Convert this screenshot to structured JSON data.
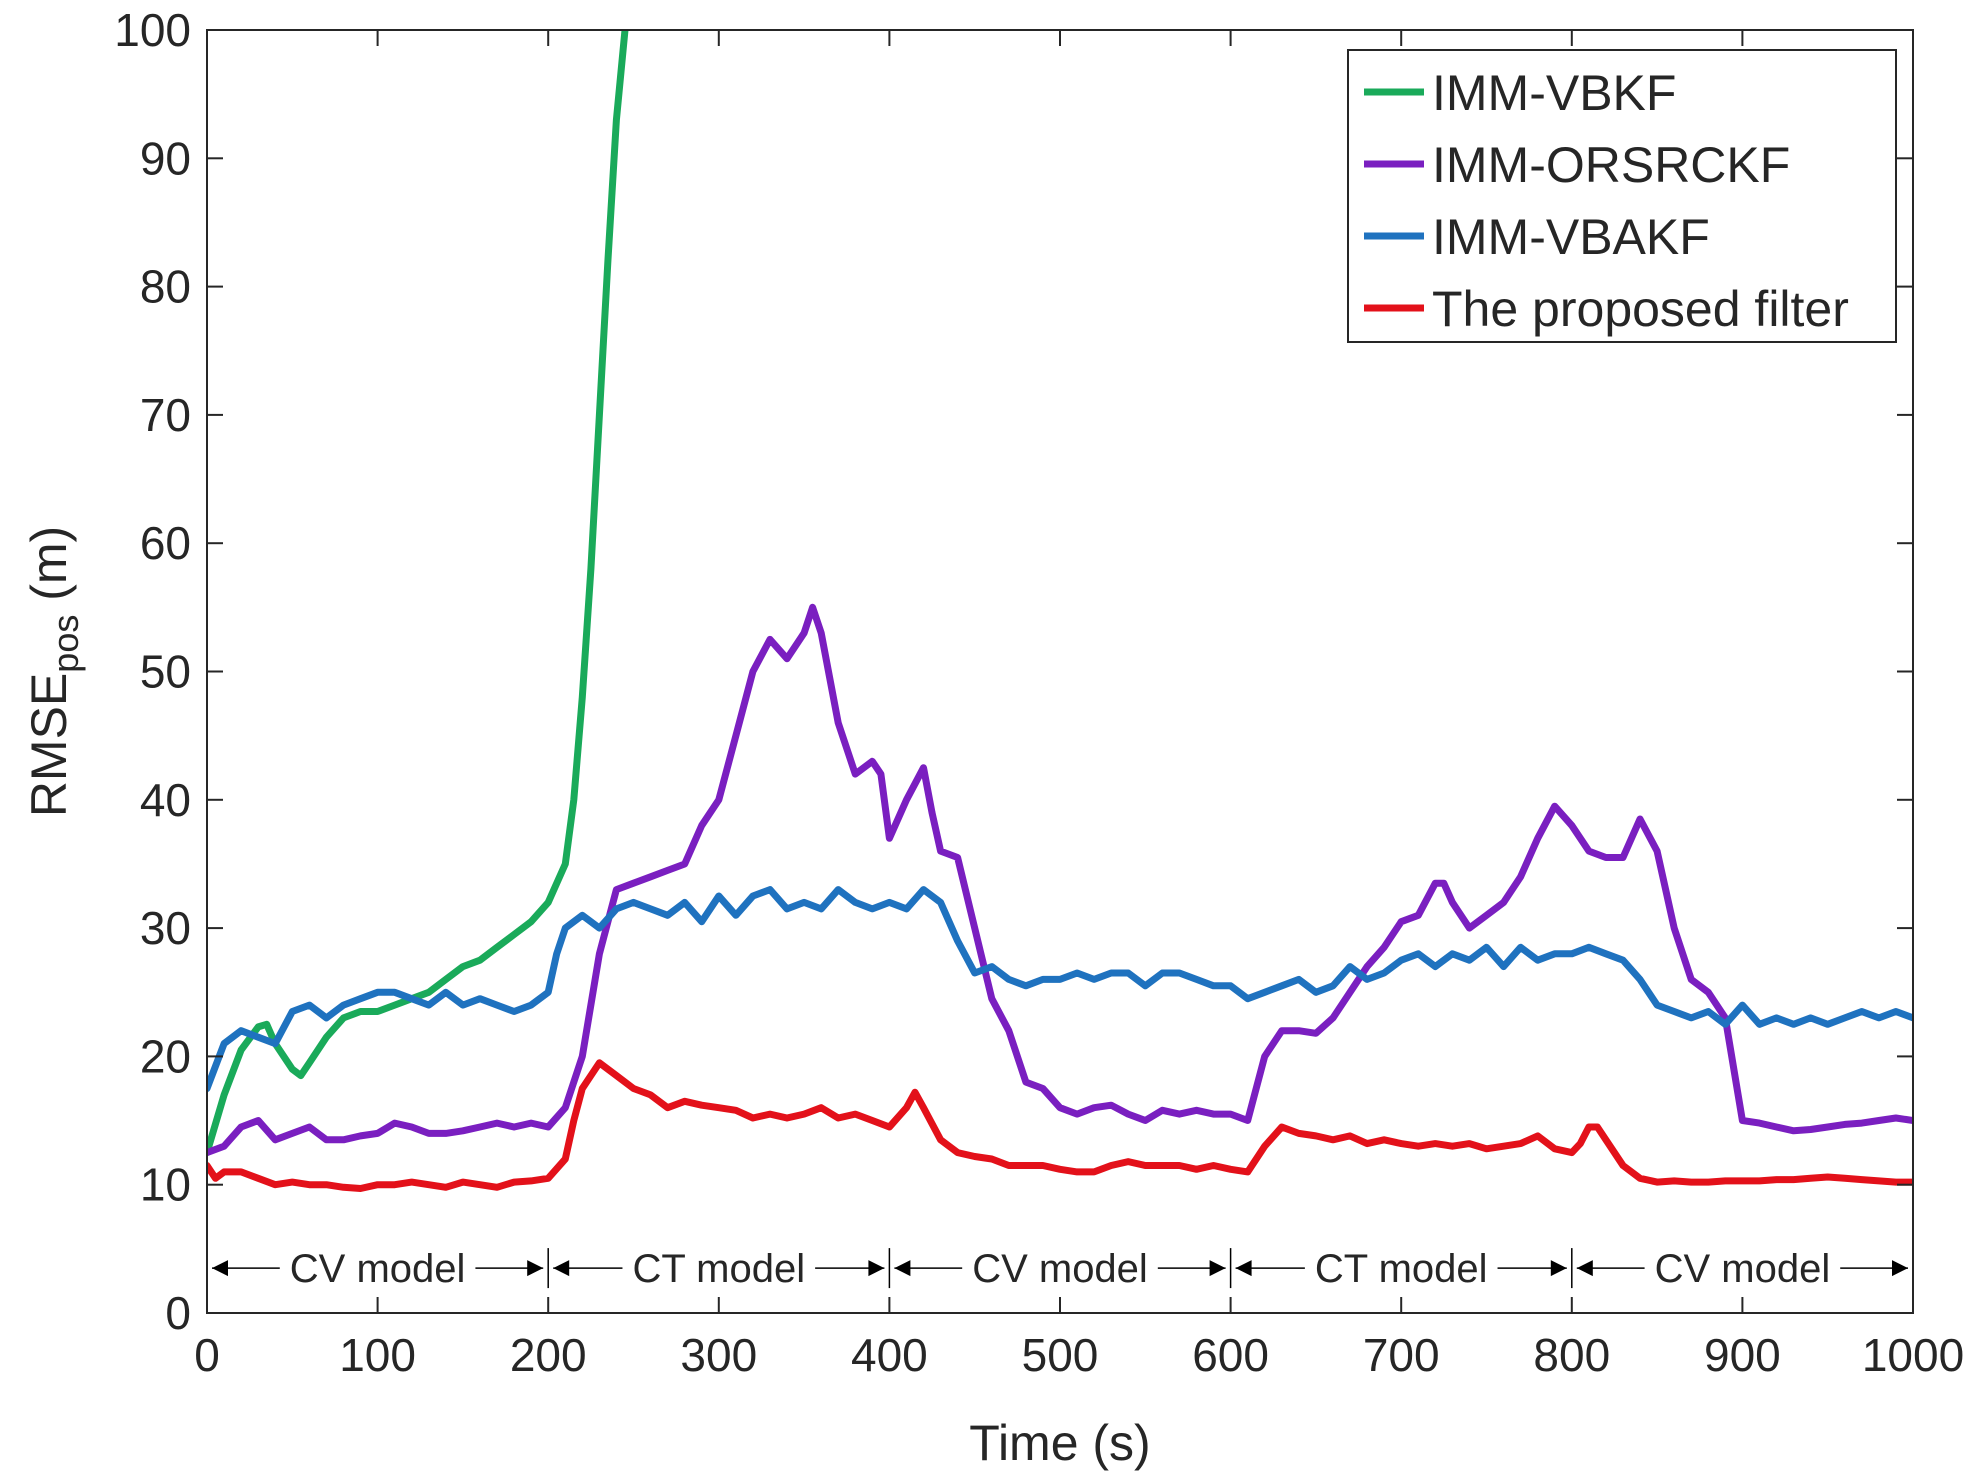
{
  "chart_data": {
    "type": "line",
    "title": "",
    "xlabel": "Time (s)",
    "ylabel_main": "RMSE",
    "ylabel_sub": "pos",
    "ylabel_suffix": " (m)",
    "xlim": [
      0,
      1000
    ],
    "ylim": [
      0,
      100
    ],
    "x_ticks": [
      0,
      100,
      200,
      300,
      400,
      500,
      600,
      700,
      800,
      900,
      1000
    ],
    "y_ticks": [
      0,
      10,
      20,
      30,
      40,
      50,
      60,
      70,
      80,
      90,
      100
    ],
    "grid": false,
    "legend_position": "top-right",
    "series": [
      {
        "name": "IMM-VBKF",
        "color": "#1aaa5a",
        "x": [
          0,
          10,
          20,
          30,
          35,
          40,
          50,
          55,
          60,
          70,
          80,
          90,
          100,
          110,
          120,
          130,
          140,
          150,
          160,
          170,
          180,
          190,
          200,
          210,
          215,
          220,
          225,
          230,
          235,
          240,
          245
        ],
        "y": [
          12.5,
          17,
          20.5,
          22.3,
          22.5,
          21,
          19,
          18.5,
          19.5,
          21.5,
          23,
          23.5,
          23.5,
          24,
          24.5,
          25,
          26,
          27,
          27.5,
          28.5,
          29.5,
          30.5,
          32,
          35,
          40,
          48,
          58,
          70,
          82,
          93,
          100
        ]
      },
      {
        "name": "IMM-ORSRCKF",
        "color": "#7a1fc0",
        "x": [
          0,
          10,
          20,
          30,
          40,
          50,
          60,
          70,
          80,
          90,
          100,
          110,
          120,
          130,
          140,
          150,
          160,
          170,
          180,
          190,
          200,
          210,
          220,
          230,
          240,
          250,
          260,
          270,
          280,
          290,
          300,
          310,
          320,
          330,
          340,
          350,
          355,
          360,
          370,
          380,
          390,
          395,
          400,
          410,
          420,
          425,
          430,
          440,
          450,
          460,
          470,
          480,
          490,
          500,
          510,
          520,
          530,
          540,
          550,
          560,
          570,
          580,
          590,
          600,
          610,
          620,
          630,
          640,
          650,
          660,
          670,
          680,
          690,
          700,
          710,
          720,
          725,
          730,
          740,
          750,
          760,
          770,
          780,
          790,
          800,
          810,
          820,
          830,
          840,
          850,
          860,
          870,
          880,
          890,
          900,
          910,
          920,
          930,
          940,
          950,
          960,
          970,
          980,
          990,
          1000
        ],
        "y": [
          12.5,
          13,
          14.5,
          15,
          13.5,
          14,
          14.5,
          13.5,
          13.5,
          13.8,
          14,
          14.8,
          14.5,
          14,
          14,
          14.2,
          14.5,
          14.8,
          14.5,
          14.8,
          14.5,
          16,
          20,
          28,
          33,
          33.5,
          34,
          34.5,
          35,
          38,
          40,
          45,
          50,
          52.5,
          51,
          53,
          55,
          53,
          46,
          42,
          43,
          42,
          37,
          40,
          42.5,
          39,
          36,
          35.5,
          30,
          24.5,
          22,
          18,
          17.5,
          16,
          15.5,
          16,
          16.2,
          15.5,
          15,
          15.8,
          15.5,
          15.8,
          15.5,
          15.5,
          15,
          20,
          22,
          22,
          21.8,
          23,
          25,
          27,
          28.5,
          30.5,
          31,
          33.5,
          33.5,
          32,
          30,
          31,
          32,
          34,
          37,
          39.5,
          38,
          36,
          35.5,
          35.5,
          38.5,
          36,
          30,
          26,
          25,
          23,
          15,
          14.8,
          14.5,
          14.2,
          14.3,
          14.5,
          14.7,
          14.8,
          15,
          15.2,
          15
        ]
      },
      {
        "name": "IMM-VBAKF",
        "color": "#1f72bf",
        "x": [
          0,
          10,
          20,
          30,
          40,
          50,
          60,
          70,
          80,
          90,
          100,
          110,
          120,
          130,
          140,
          150,
          160,
          170,
          180,
          190,
          200,
          205,
          210,
          220,
          230,
          240,
          250,
          260,
          270,
          280,
          290,
          300,
          310,
          320,
          330,
          340,
          350,
          360,
          370,
          380,
          390,
          400,
          410,
          420,
          430,
          440,
          450,
          460,
          470,
          480,
          490,
          500,
          510,
          520,
          530,
          540,
          550,
          560,
          570,
          580,
          590,
          600,
          610,
          620,
          630,
          640,
          650,
          660,
          670,
          680,
          690,
          700,
          710,
          720,
          730,
          740,
          750,
          760,
          770,
          780,
          790,
          800,
          810,
          820,
          830,
          840,
          850,
          860,
          870,
          880,
          890,
          900,
          910,
          920,
          930,
          940,
          950,
          960,
          970,
          980,
          990,
          1000
        ],
        "y": [
          17.5,
          21,
          22,
          21.5,
          21,
          23.5,
          24,
          23,
          24,
          24.5,
          25,
          25,
          24.5,
          24,
          25,
          24,
          24.5,
          24,
          23.5,
          24,
          25,
          28,
          30,
          31,
          30,
          31.5,
          32,
          31.5,
          31,
          32,
          30.5,
          32.5,
          31,
          32.5,
          33,
          31.5,
          32,
          31.5,
          33,
          32,
          31.5,
          32,
          31.5,
          33,
          32,
          29,
          26.5,
          27,
          26,
          25.5,
          26,
          26,
          26.5,
          26,
          26.5,
          26.5,
          25.5,
          26.5,
          26.5,
          26,
          25.5,
          25.5,
          24.5,
          25,
          25.5,
          26,
          25,
          25.5,
          27,
          26,
          26.5,
          27.5,
          28,
          27,
          28,
          27.5,
          28.5,
          27,
          28.5,
          27.5,
          28,
          28,
          28.5,
          28,
          27.5,
          26,
          24,
          23.5,
          23,
          23.5,
          22.5,
          24,
          22.5,
          23,
          22.5,
          23,
          22.5,
          23,
          23.5,
          23,
          23.5,
          23
        ]
      },
      {
        "name": "The proposed filter",
        "color": "#e3111a",
        "x": [
          0,
          5,
          10,
          20,
          30,
          40,
          50,
          60,
          70,
          80,
          90,
          100,
          110,
          120,
          130,
          140,
          150,
          160,
          170,
          180,
          190,
          200,
          210,
          215,
          220,
          225,
          230,
          235,
          240,
          250,
          260,
          270,
          280,
          290,
          300,
          310,
          320,
          330,
          340,
          350,
          360,
          370,
          380,
          390,
          400,
          410,
          415,
          420,
          430,
          440,
          450,
          460,
          470,
          480,
          490,
          500,
          510,
          520,
          530,
          540,
          550,
          560,
          570,
          580,
          590,
          600,
          610,
          620,
          630,
          640,
          650,
          660,
          670,
          680,
          690,
          700,
          710,
          720,
          730,
          740,
          750,
          760,
          770,
          780,
          790,
          800,
          805,
          810,
          815,
          820,
          830,
          840,
          850,
          860,
          870,
          880,
          890,
          900,
          910,
          920,
          930,
          940,
          950,
          960,
          970,
          980,
          990,
          1000
        ],
        "y": [
          11.5,
          10.5,
          11,
          11,
          10.5,
          10,
          10.2,
          10,
          10,
          9.8,
          9.7,
          10,
          10,
          10.2,
          10,
          9.8,
          10.2,
          10,
          9.8,
          10.2,
          10.3,
          10.5,
          12,
          15,
          17.5,
          18.5,
          19.5,
          19,
          18.5,
          17.5,
          17,
          16,
          16.5,
          16.2,
          16,
          15.8,
          15.2,
          15.5,
          15.2,
          15.5,
          16,
          15.2,
          15.5,
          15,
          14.5,
          16,
          17.2,
          16,
          13.5,
          12.5,
          12.2,
          12,
          11.5,
          11.5,
          11.5,
          11.2,
          11,
          11,
          11.5,
          11.8,
          11.5,
          11.5,
          11.5,
          11.2,
          11.5,
          11.2,
          11,
          13,
          14.5,
          14,
          13.8,
          13.5,
          13.8,
          13.2,
          13.5,
          13.2,
          13,
          13.2,
          13,
          13.2,
          12.8,
          13,
          13.2,
          13.8,
          12.8,
          12.5,
          13.2,
          14.5,
          14.5,
          13.5,
          11.5,
          10.5,
          10.2,
          10.3,
          10.2,
          10.2,
          10.3,
          10.3,
          10.3,
          10.4,
          10.4,
          10.5,
          10.6,
          10.5,
          10.4,
          10.3,
          10.2,
          10.2
        ]
      }
    ],
    "annotations": {
      "y_value": 3.5,
      "divider_x": [
        200,
        400,
        600,
        800
      ],
      "segments": [
        {
          "label": "CV model",
          "x_start": 0,
          "x_end": 200
        },
        {
          "label": "CT model",
          "x_start": 200,
          "x_end": 400
        },
        {
          "label": "CV model",
          "x_start": 400,
          "x_end": 600
        },
        {
          "label": "CT model",
          "x_start": 600,
          "x_end": 800
        },
        {
          "label": "CV model",
          "x_start": 800,
          "x_end": 1000
        }
      ]
    }
  }
}
